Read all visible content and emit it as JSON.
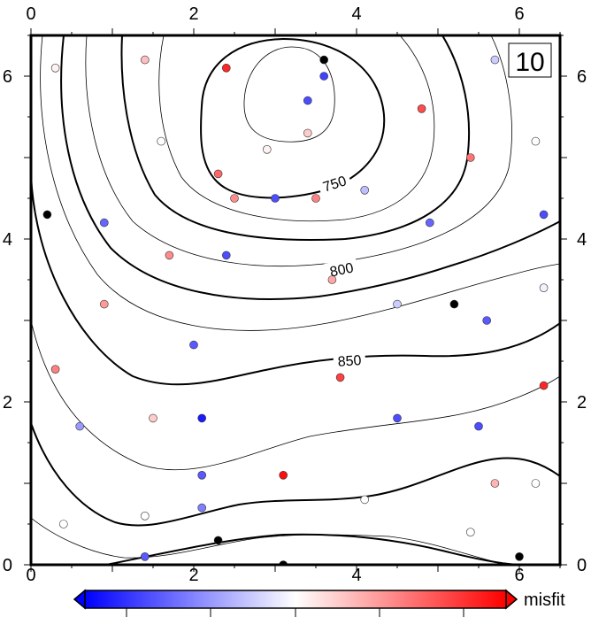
{
  "chart_data": {
    "type": "scatter",
    "title": "",
    "panel_label": "10",
    "xlim": [
      0,
      6.5
    ],
    "ylim": [
      0,
      6.5
    ],
    "x_ticks": [
      0,
      2,
      4,
      6
    ],
    "y_ticks": [
      0,
      2,
      4,
      6
    ],
    "x_tick_labels": [
      "0",
      "2",
      "4",
      "6"
    ],
    "y_tick_labels": [
      "0",
      "2",
      "4",
      "6"
    ],
    "contour_labels": [
      "750",
      "800",
      "850"
    ],
    "colorbar_label": "misfit",
    "colorbar_colors": [
      "#0000ff",
      "#ffffff",
      "#ff0000"
    ],
    "points": [
      {
        "x": 0.3,
        "y": 6.1,
        "misfit": 0.05
      },
      {
        "x": 1.4,
        "y": 6.2,
        "misfit": 0.25
      },
      {
        "x": 2.4,
        "y": 6.1,
        "misfit": 0.85
      },
      {
        "x": 3.6,
        "y": 6.2,
        "misfit": null
      },
      {
        "x": 3.6,
        "y": 6.0,
        "misfit": -0.75
      },
      {
        "x": 5.7,
        "y": 6.2,
        "misfit": -0.2
      },
      {
        "x": 3.4,
        "y": 5.7,
        "misfit": -0.7
      },
      {
        "x": 3.4,
        "y": 5.3,
        "misfit": 0.2
      },
      {
        "x": 4.8,
        "y": 5.6,
        "misfit": 0.7
      },
      {
        "x": 1.6,
        "y": 5.2,
        "misfit": 0.0
      },
      {
        "x": 2.9,
        "y": 5.1,
        "misfit": 0.05
      },
      {
        "x": 6.2,
        "y": 5.2,
        "misfit": 0.0
      },
      {
        "x": 5.4,
        "y": 5.0,
        "misfit": 0.55
      },
      {
        "x": 2.3,
        "y": 4.8,
        "misfit": 0.6
      },
      {
        "x": 2.5,
        "y": 4.5,
        "misfit": 0.45
      },
      {
        "x": 3.0,
        "y": 4.5,
        "misfit": -0.7
      },
      {
        "x": 3.5,
        "y": 4.5,
        "misfit": 0.5
      },
      {
        "x": 4.1,
        "y": 4.6,
        "misfit": -0.25
      },
      {
        "x": 0.2,
        "y": 4.3,
        "misfit": null
      },
      {
        "x": 0.9,
        "y": 4.2,
        "misfit": -0.6
      },
      {
        "x": 4.9,
        "y": 4.2,
        "misfit": -0.6
      },
      {
        "x": 6.3,
        "y": 4.3,
        "misfit": -0.7
      },
      {
        "x": 1.7,
        "y": 3.8,
        "misfit": 0.45
      },
      {
        "x": 2.4,
        "y": 3.8,
        "misfit": -0.7
      },
      {
        "x": 3.7,
        "y": 3.5,
        "misfit": 0.35
      },
      {
        "x": 6.3,
        "y": 3.4,
        "misfit": -0.05
      },
      {
        "x": 0.9,
        "y": 3.2,
        "misfit": 0.4
      },
      {
        "x": 4.5,
        "y": 3.2,
        "misfit": -0.2
      },
      {
        "x": 5.2,
        "y": 3.2,
        "misfit": null
      },
      {
        "x": 5.6,
        "y": 3.0,
        "misfit": -0.65
      },
      {
        "x": 2.0,
        "y": 2.7,
        "misfit": -0.65
      },
      {
        "x": 0.3,
        "y": 2.4,
        "misfit": 0.5
      },
      {
        "x": 3.8,
        "y": 2.3,
        "misfit": 0.75
      },
      {
        "x": 6.3,
        "y": 2.2,
        "misfit": 0.85
      },
      {
        "x": 0.6,
        "y": 1.7,
        "misfit": -0.4
      },
      {
        "x": 1.5,
        "y": 1.8,
        "misfit": 0.2
      },
      {
        "x": 2.1,
        "y": 1.8,
        "misfit": -0.9
      },
      {
        "x": 4.5,
        "y": 1.8,
        "misfit": -0.7
      },
      {
        "x": 5.5,
        "y": 1.7,
        "misfit": -0.7
      },
      {
        "x": 2.1,
        "y": 1.1,
        "misfit": -0.65
      },
      {
        "x": 3.1,
        "y": 1.1,
        "misfit": 0.95
      },
      {
        "x": 5.7,
        "y": 1.0,
        "misfit": 0.3
      },
      {
        "x": 6.2,
        "y": 1.0,
        "misfit": 0.0
      },
      {
        "x": 2.1,
        "y": 0.7,
        "misfit": -0.5
      },
      {
        "x": 4.1,
        "y": 0.8,
        "misfit": 0.0
      },
      {
        "x": 0.4,
        "y": 0.5,
        "misfit": 0.0
      },
      {
        "x": 1.4,
        "y": 0.6,
        "misfit": 0.0
      },
      {
        "x": 5.4,
        "y": 0.4,
        "misfit": 0.0
      },
      {
        "x": 2.3,
        "y": 0.3,
        "misfit": null
      },
      {
        "x": 1.4,
        "y": 0.1,
        "misfit": -0.65
      },
      {
        "x": 3.1,
        "y": 0.0,
        "misfit": null
      },
      {
        "x": 6.0,
        "y": 0.1,
        "misfit": null
      }
    ]
  }
}
